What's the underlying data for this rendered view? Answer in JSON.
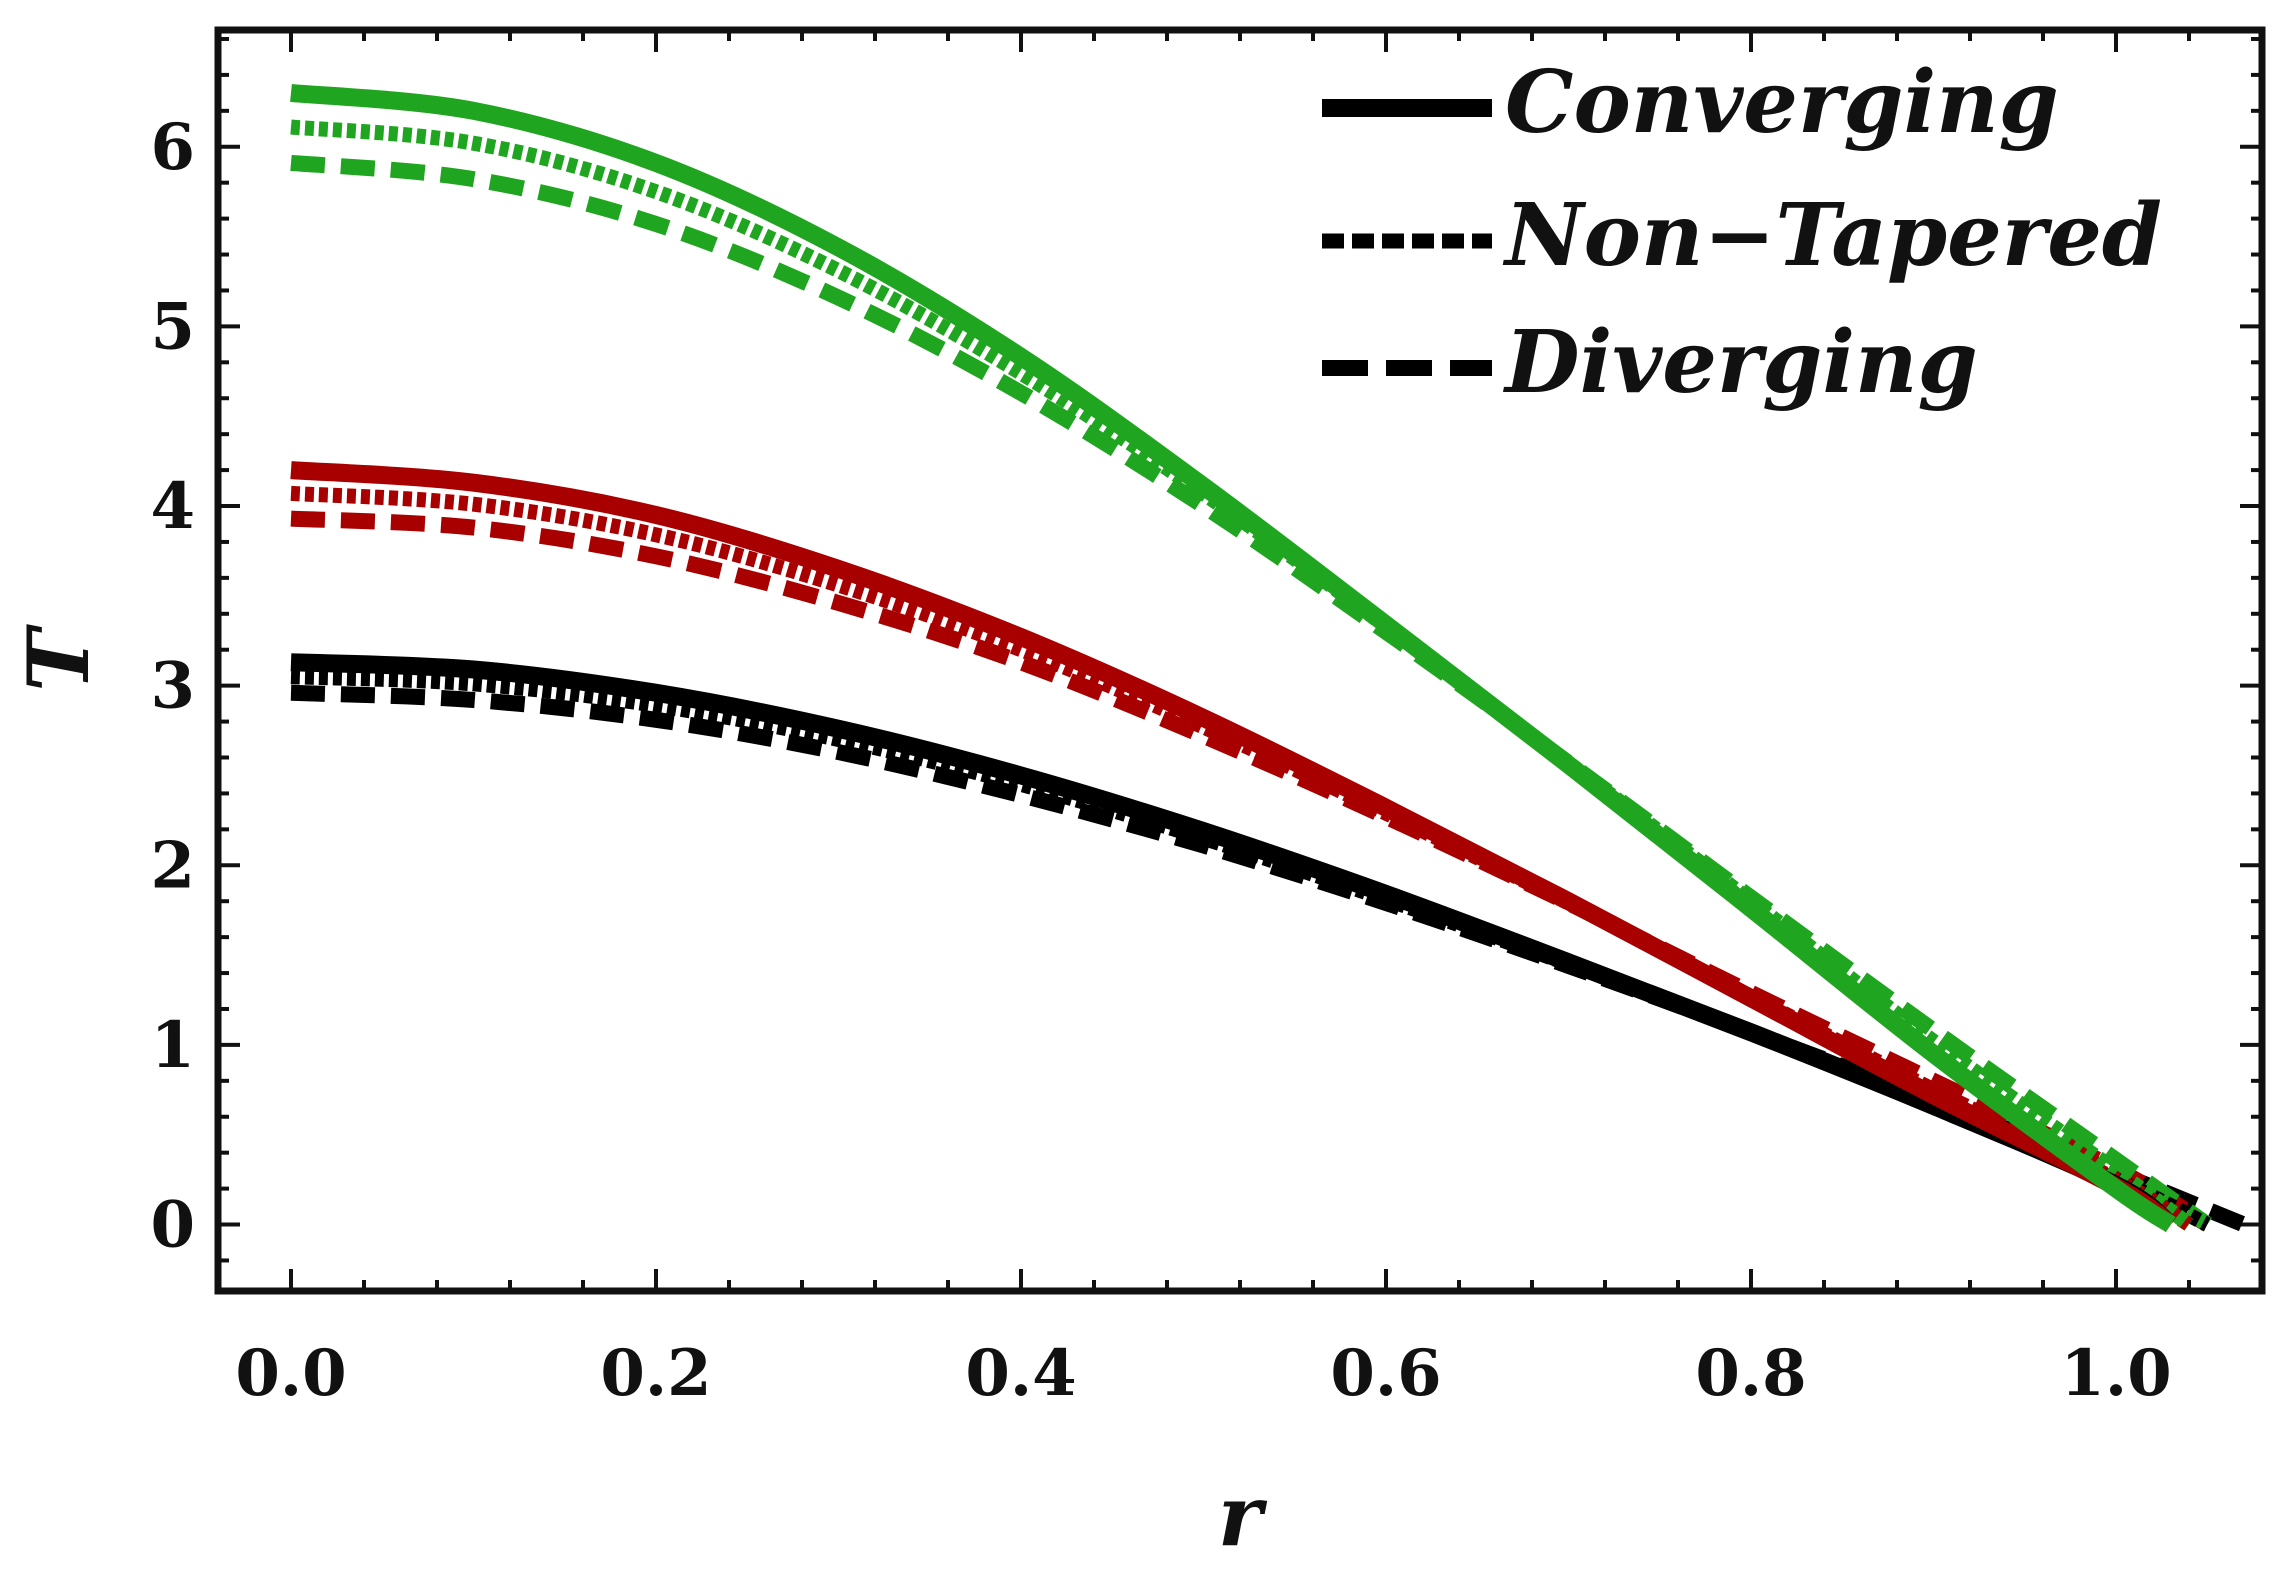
{
  "chart_data": {
    "type": "line",
    "title": "",
    "xlabel": "r",
    "ylabel": "T",
    "xlim": [
      -0.04,
      1.08
    ],
    "ylim": [
      -0.37,
      6.65
    ],
    "xticks": [
      0.0,
      0.2,
      0.4,
      0.6,
      0.8,
      1.0
    ],
    "xtick_labels": [
      "0.0",
      "0.2",
      "0.4",
      "0.6",
      "0.8",
      "1.0"
    ],
    "yticks": [
      0,
      1,
      2,
      3,
      4,
      5,
      6
    ],
    "ytick_labels": [
      "0",
      "1",
      "2",
      "3",
      "4",
      "5",
      "6"
    ],
    "legend": [
      {
        "label": "Converging",
        "style": "solid"
      },
      {
        "label": "Non−Tapered",
        "style": "dotted"
      },
      {
        "label": "Diverging",
        "style": "dashed"
      }
    ],
    "legend_position": "top-right",
    "colors": {
      "green": "#1fa51f",
      "red": "#a80000",
      "black": "#000000",
      "frame": "#111111"
    },
    "series": [
      {
        "name": "Black Converging",
        "color": "black",
        "style": "solid",
        "r_max": 1.03,
        "x": [
          0.0,
          0.1,
          0.2,
          0.3,
          0.4,
          0.5,
          0.6,
          0.7,
          0.8,
          0.9,
          1.0,
          1.03
        ],
        "y": [
          3.13,
          3.09,
          2.96,
          2.76,
          2.5,
          2.19,
          1.84,
          1.46,
          1.07,
          0.66,
          0.22,
          0.0
        ]
      },
      {
        "name": "Black Non-Tapered",
        "color": "black",
        "style": "dotted",
        "r_max": 1.05,
        "x": [
          0.0,
          0.1,
          0.2,
          0.3,
          0.4,
          0.5,
          0.6,
          0.7,
          0.8,
          0.9,
          1.0,
          1.05
        ],
        "y": [
          3.05,
          3.01,
          2.89,
          2.7,
          2.45,
          2.15,
          1.81,
          1.45,
          1.07,
          0.67,
          0.25,
          0.0
        ]
      },
      {
        "name": "Black Diverging",
        "color": "black",
        "style": "dashed",
        "r_max": 1.07,
        "x": [
          0.0,
          0.1,
          0.2,
          0.3,
          0.4,
          0.5,
          0.6,
          0.7,
          0.8,
          0.9,
          1.0,
          1.07
        ],
        "y": [
          2.96,
          2.92,
          2.81,
          2.63,
          2.39,
          2.11,
          1.79,
          1.44,
          1.07,
          0.69,
          0.29,
          0.0
        ]
      },
      {
        "name": "Red Converging",
        "color": "red",
        "style": "solid",
        "r_max": 1.03,
        "x": [
          0.0,
          0.1,
          0.2,
          0.3,
          0.4,
          0.5,
          0.6,
          0.7,
          0.8,
          0.9,
          1.0,
          1.03
        ],
        "y": [
          4.2,
          4.13,
          3.95,
          3.65,
          3.27,
          2.82,
          2.32,
          1.8,
          1.26,
          0.72,
          0.21,
          0.0
        ]
      },
      {
        "name": "Red Non-Tapered",
        "color": "red",
        "style": "dotted",
        "r_max": 1.04,
        "x": [
          0.0,
          0.1,
          0.2,
          0.3,
          0.4,
          0.5,
          0.6,
          0.7,
          0.8,
          0.9,
          1.0,
          1.04
        ],
        "y": [
          4.07,
          4.01,
          3.84,
          3.56,
          3.2,
          2.77,
          2.29,
          1.79,
          1.27,
          0.75,
          0.25,
          0.0
        ]
      },
      {
        "name": "Red Diverging",
        "color": "red",
        "style": "dashed",
        "r_max": 1.05,
        "x": [
          0.0,
          0.1,
          0.2,
          0.3,
          0.4,
          0.5,
          0.6,
          0.7,
          0.8,
          0.9,
          1.0,
          1.05
        ],
        "y": [
          3.93,
          3.88,
          3.72,
          3.46,
          3.13,
          2.72,
          2.27,
          1.79,
          1.29,
          0.8,
          0.31,
          0.0
        ]
      },
      {
        "name": "Green Converging",
        "color": "green",
        "style": "solid",
        "r_max": 1.03,
        "x": [
          0.0,
          0.1,
          0.2,
          0.3,
          0.4,
          0.5,
          0.6,
          0.7,
          0.8,
          0.9,
          1.0,
          1.03
        ],
        "y": [
          6.3,
          6.2,
          5.91,
          5.44,
          4.83,
          4.11,
          3.34,
          2.56,
          1.76,
          0.95,
          0.2,
          0.0
        ]
      },
      {
        "name": "Green Non-Tapered",
        "color": "green",
        "style": "dotted",
        "r_max": 1.04,
        "x": [
          0.0,
          0.1,
          0.2,
          0.3,
          0.4,
          0.5,
          0.6,
          0.7,
          0.8,
          0.9,
          1.0,
          1.04
        ],
        "y": [
          6.11,
          6.02,
          5.75,
          5.31,
          4.74,
          4.07,
          3.33,
          2.57,
          1.8,
          1.02,
          0.3,
          0.0
        ]
      },
      {
        "name": "Green Diverging",
        "color": "green",
        "style": "dashed",
        "r_max": 1.05,
        "x": [
          0.0,
          0.1,
          0.2,
          0.3,
          0.4,
          0.5,
          0.6,
          0.7,
          0.8,
          0.9,
          1.0,
          1.05
        ],
        "y": [
          5.91,
          5.82,
          5.57,
          5.16,
          4.63,
          4.0,
          3.3,
          2.57,
          1.82,
          1.08,
          0.36,
          0.0
        ]
      }
    ]
  }
}
